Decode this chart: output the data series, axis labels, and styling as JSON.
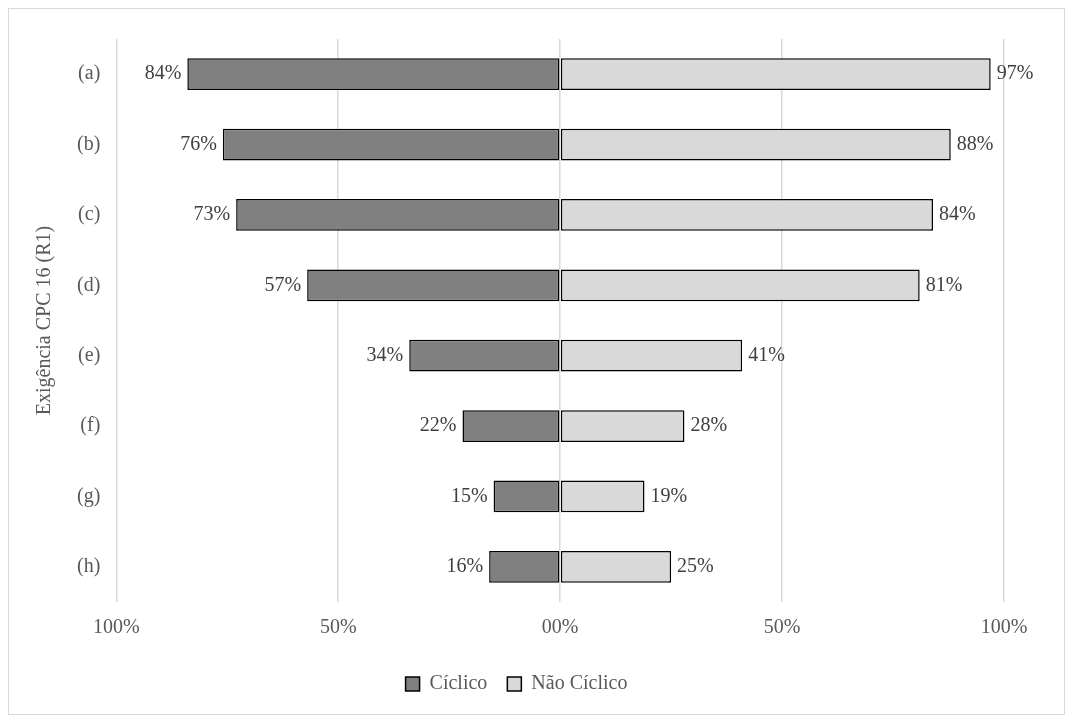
{
  "chart_data": {
    "type": "bar",
    "orientation": "horizontal",
    "ylabel": "Exigência CPC 16 (R1)",
    "categories": [
      "(a)",
      "(b)",
      "(c)",
      "(d)",
      "(e)",
      "(f)",
      "(g)",
      "(h)"
    ],
    "series": [
      {
        "name": "Cíclico",
        "color": "#808080",
        "base": [
          -84,
          -76,
          -73,
          -57,
          -34,
          -22,
          -15,
          -16
        ],
        "values": [
          84,
          76,
          73,
          57,
          34,
          22,
          15,
          16
        ],
        "value_labels": [
          "84%",
          "76%",
          "73%",
          "57%",
          "34%",
          "22%",
          "15%",
          "16%"
        ]
      },
      {
        "name": "Não Cíclico",
        "color": "#d9d9d9",
        "values": [
          97,
          88,
          84,
          81,
          41,
          28,
          19,
          25
        ],
        "value_labels": [
          "97%",
          "88%",
          "84%",
          "81%",
          "41%",
          "28%",
          "19%",
          "25%"
        ]
      }
    ],
    "xlim": [
      -100,
      100
    ],
    "xticks": [
      {
        "value": -100,
        "label": "100%"
      },
      {
        "value": -50,
        "label": "50%"
      },
      {
        "value": 0,
        "label": "00%"
      },
      {
        "value": 50,
        "label": "50%"
      },
      {
        "value": 100,
        "label": "100%"
      }
    ],
    "grid": "x",
    "legend": "bottom"
  }
}
